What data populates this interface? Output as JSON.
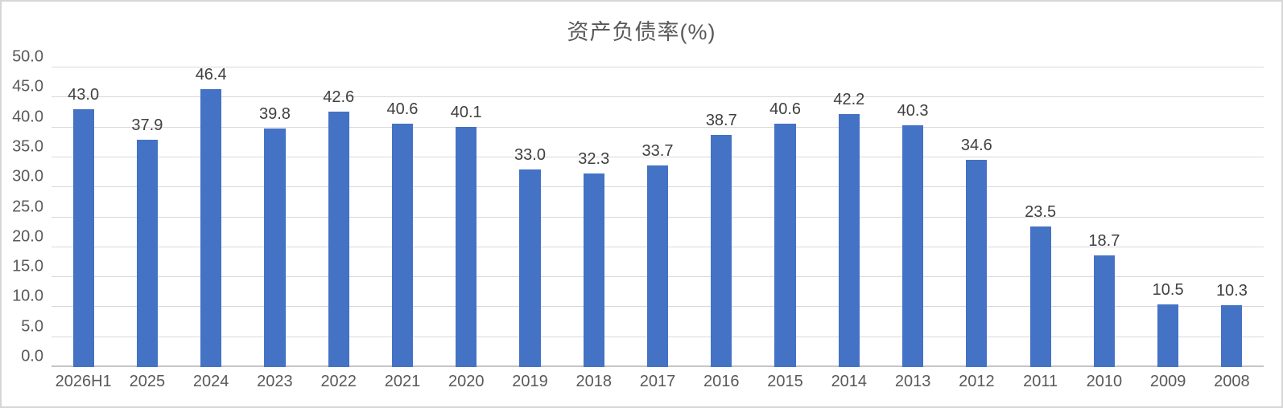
{
  "chart_data": {
    "type": "bar",
    "title": "资产负债率(%)",
    "categories": [
      "2026H1",
      "2025",
      "2024",
      "2023",
      "2022",
      "2021",
      "2020",
      "2019",
      "2018",
      "2017",
      "2016",
      "2015",
      "2014",
      "2013",
      "2012",
      "2011",
      "2010",
      "2009",
      "2008"
    ],
    "values": [
      43.0,
      37.9,
      46.4,
      39.8,
      42.6,
      40.6,
      40.1,
      33.0,
      32.3,
      33.7,
      38.7,
      40.6,
      42.2,
      40.3,
      34.6,
      23.5,
      18.7,
      10.5,
      10.3
    ],
    "value_labels": [
      "43.0",
      "37.9",
      "46.4",
      "39.8",
      "42.6",
      "40.6",
      "40.1",
      "33.0",
      "32.3",
      "33.7",
      "38.7",
      "40.6",
      "42.2",
      "40.3",
      "34.6",
      "23.5",
      "18.7",
      "10.5",
      "10.3"
    ],
    "xlabel": "",
    "ylabel": "",
    "ylim": [
      0,
      50
    ],
    "y_tick_step": 5,
    "y_tick_labels": [
      "0.0",
      "5.0",
      "10.0",
      "15.0",
      "20.0",
      "25.0",
      "30.0",
      "35.0",
      "40.0",
      "45.0",
      "50.0"
    ],
    "grid": "horizontal",
    "legend_position": "none",
    "bar_color": "#4472c4",
    "gridline_color": "#d9d9d9",
    "axis_text_color": "#595959",
    "data_label_color": "#404040"
  }
}
